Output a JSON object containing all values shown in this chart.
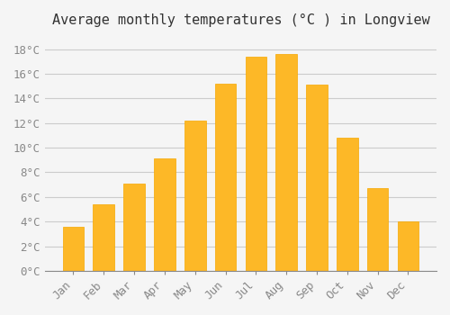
{
  "title": "Average monthly temperatures (°C ) in Longview",
  "months": [
    "Jan",
    "Feb",
    "Mar",
    "Apr",
    "May",
    "Jun",
    "Jul",
    "Aug",
    "Sep",
    "Oct",
    "Nov",
    "Dec"
  ],
  "values": [
    3.6,
    5.4,
    7.1,
    9.1,
    12.2,
    15.2,
    17.4,
    17.6,
    15.1,
    10.8,
    6.7,
    4.0
  ],
  "bar_color": "#FDB827",
  "bar_edge_color": "#F5A800",
  "background_color": "#F5F5F5",
  "grid_color": "#CCCCCC",
  "ylim": [
    0,
    19
  ],
  "yticks": [
    0,
    2,
    4,
    6,
    8,
    10,
    12,
    14,
    16,
    18
  ],
  "ytick_labels": [
    "0°C",
    "2°C",
    "4°C",
    "6°C",
    "8°C",
    "10°C",
    "12°C",
    "14°C",
    "16°C",
    "18°C"
  ],
  "title_fontsize": 11,
  "tick_fontsize": 9,
  "tick_font_color": "#888888"
}
